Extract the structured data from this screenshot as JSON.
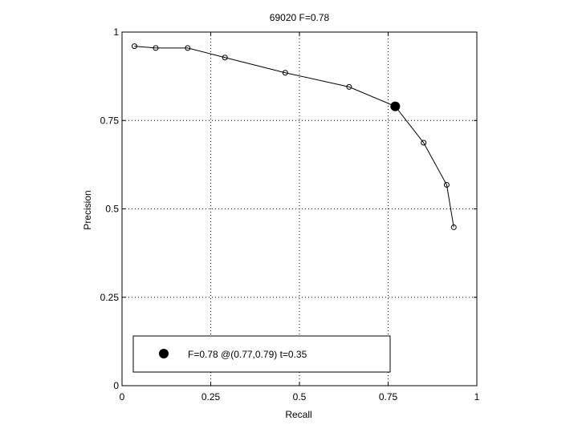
{
  "chart_data": {
    "type": "line",
    "title": "69020 F=0.78",
    "xlabel": "Recall",
    "ylabel": "Precision",
    "xlim": [
      0,
      1
    ],
    "ylim": [
      0,
      1
    ],
    "grid": true,
    "xticks": [
      0,
      0.25,
      0.5,
      0.75,
      1
    ],
    "yticks": [
      0,
      0.25,
      0.5,
      0.75,
      1
    ],
    "xtick_labels": [
      "0",
      "0.25",
      "0.5",
      "0.75",
      "1"
    ],
    "ytick_labels": [
      "0",
      "0.25",
      "0.5",
      "0.75",
      "1"
    ],
    "series": [
      {
        "x": [
          0.035,
          0.095,
          0.185,
          0.29,
          0.46,
          0.64,
          0.77,
          0.85,
          0.915,
          0.935
        ],
        "y": [
          0.96,
          0.955,
          0.955,
          0.928,
          0.885,
          0.845,
          0.79,
          0.687,
          0.568,
          0.448
        ]
      }
    ],
    "highlight_point": {
      "x": 0.77,
      "y": 0.79
    },
    "legend": {
      "placement": "bottom-left",
      "label": "F=0.78 @(0.77,0.79) t=0.35"
    }
  }
}
